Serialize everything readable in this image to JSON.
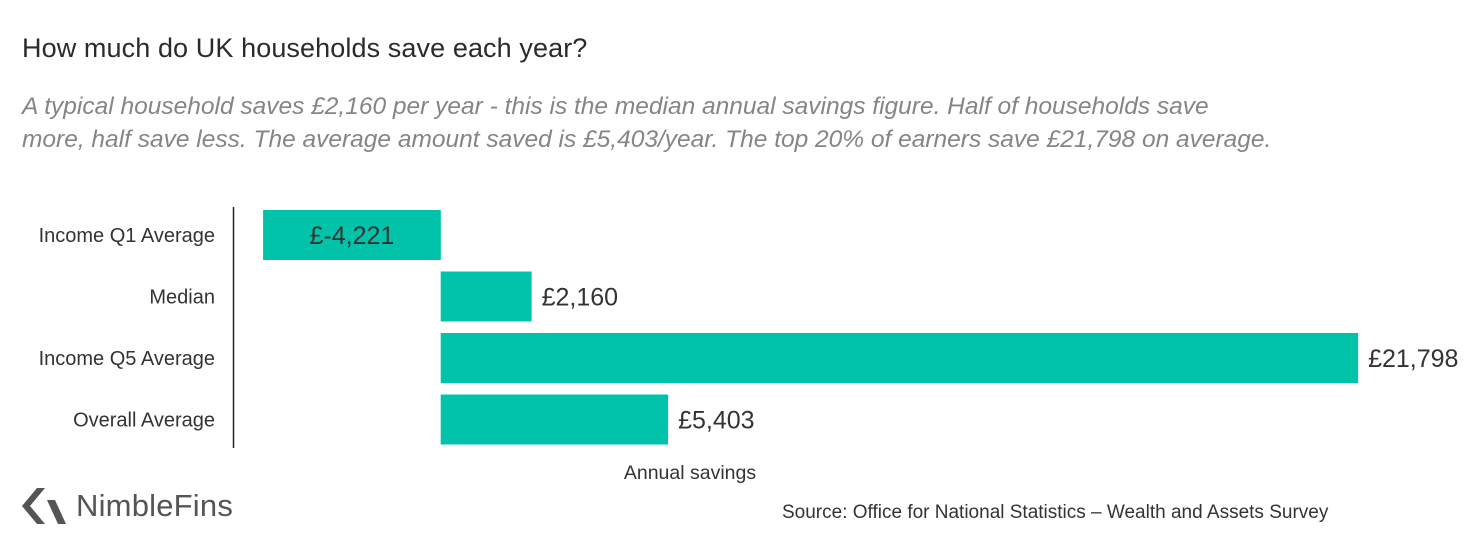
{
  "title": "How much do UK households save each year?",
  "subtitle_lines": [
    "A typical household saves £2,160 per year - this is the median annual savings figure. Half of households save",
    "more, half save less. The average amount saved is £5,403/year. The top 20% of earners save £21,798 on average."
  ],
  "chart_data": {
    "type": "bar",
    "orientation": "horizontal",
    "categories": [
      "Income Q1 Average",
      "Median",
      "Income Q5 Average",
      "Overall Average"
    ],
    "values": [
      -4221,
      2160,
      21798,
      5403
    ],
    "data_labels": [
      "£-4,221",
      "£2,160",
      "£21,798",
      "£5,403"
    ],
    "xlabel": "Annual savings",
    "ylabel": "",
    "xlim": [
      -4650,
      22650
    ],
    "grid": false,
    "bar_color": "#00c3aa"
  },
  "logo": {
    "text": "NimbleFins",
    "color": "#555555"
  },
  "source": "Source: Office for National Statistics – Wealth and Assets Survey"
}
